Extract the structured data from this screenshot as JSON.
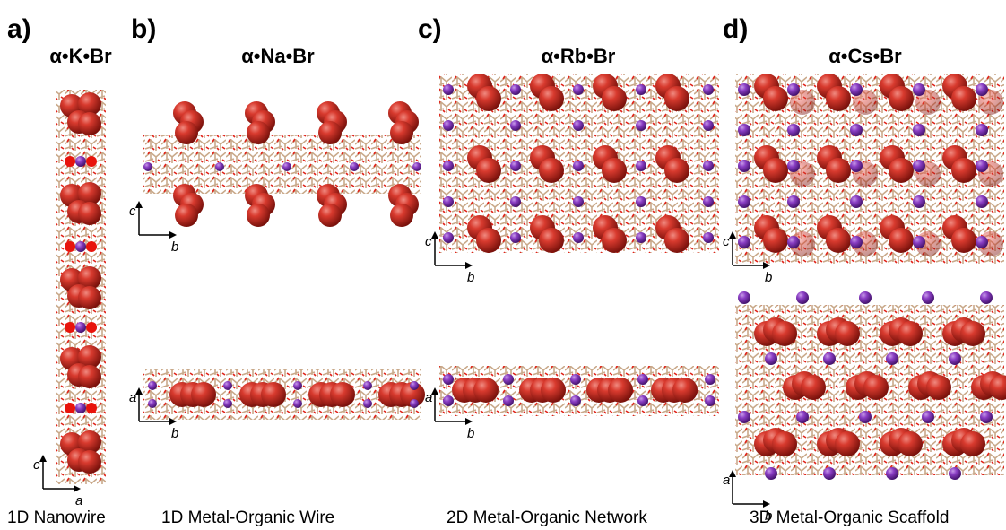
{
  "panels": [
    {
      "label": "a)",
      "title": "α•K•Br",
      "caption": "1D Nanowire",
      "views": [
        {
          "axes": [
            "c",
            "a"
          ]
        }
      ]
    },
    {
      "label": "b)",
      "title": "α•Na•Br",
      "caption": "1D Metal-Organic Wire",
      "views": [
        {
          "axes": [
            "c",
            "b"
          ]
        },
        {
          "axes": [
            "a",
            "b"
          ]
        }
      ]
    },
    {
      "label": "c)",
      "title": "α•Rb•Br",
      "caption": "2D Metal-Organic Network",
      "views": [
        {
          "axes": [
            "c",
            "b"
          ]
        },
        {
          "axes": [
            "a",
            "b"
          ]
        }
      ]
    },
    {
      "label": "d)",
      "title": "α•Cs•Br",
      "caption": "3D Metal-Organic Scaffold",
      "views": [
        {
          "axes": [
            "c",
            "b"
          ]
        },
        {
          "axes": [
            "a",
            "b"
          ]
        }
      ]
    }
  ]
}
